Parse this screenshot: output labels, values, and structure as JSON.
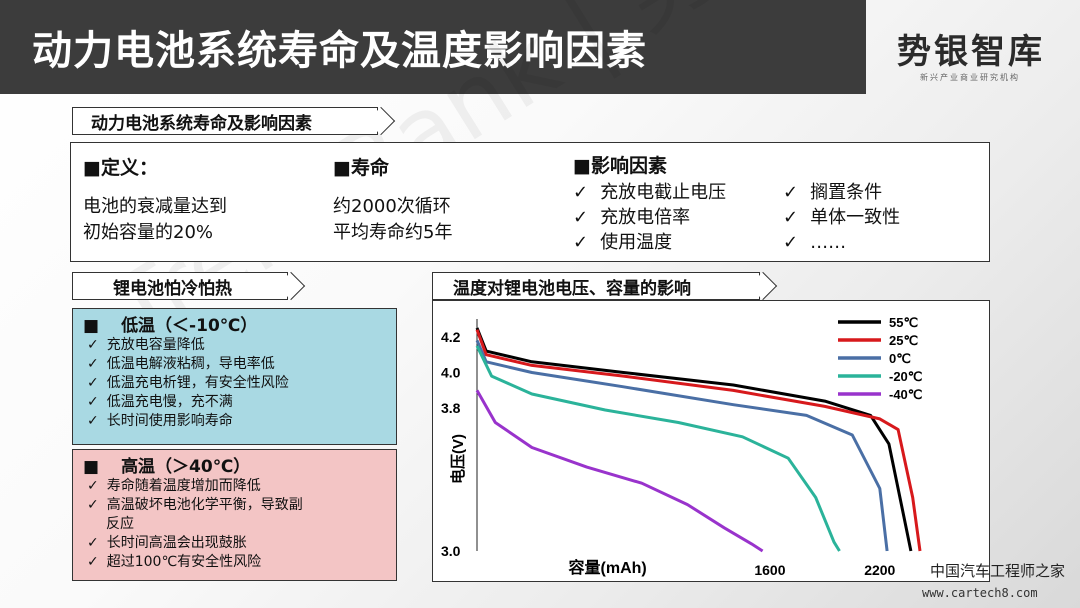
{
  "header": {
    "title": "动力电池系统寿命及温度影响因素"
  },
  "logo": {
    "name": "势银智库",
    "subtitle": "新兴产业商业研究机构"
  },
  "watermark": "TrendBank | 势银智库",
  "sections": {
    "definition_tag": "动力电池系统寿命及影响因素",
    "cold_tag": "锂电池怕冷怕热",
    "chart_tag": "温度对锂电池电压、容量的影响"
  },
  "definition": {
    "heading": "■定义：",
    "lines": [
      "电池的衰减量达到",
      "初始容量的20%"
    ]
  },
  "life": {
    "heading": "■寿命",
    "lines": [
      "约2000次循环",
      "平均寿命约5年"
    ]
  },
  "factors": {
    "heading": "■影响因素",
    "items": [
      "充放电截止电压",
      "搁置条件",
      "充放电倍率",
      "单体一致性",
      "使用温度",
      "……"
    ]
  },
  "cold": {
    "marker": "■",
    "heading": "低温（＜-10℃）",
    "items": [
      "充放电容量降低",
      "低温电解液粘稠，导电率低",
      "低温充电析锂，有安全性风险",
      "低温充电慢，充不满",
      "长时间使用影响寿命"
    ]
  },
  "hot": {
    "marker": "■",
    "heading": "高温（＞40℃）",
    "items": [
      "寿命随着温度增加而降低",
      "高温破坏电池化学平衡，导致副",
      "反应",
      "长时间高温会出现鼓胀",
      "超过100℃有安全性风险"
    ]
  },
  "footer": {
    "mark": "中国汽车工程师之家",
    "url": "www.cartech8.com"
  },
  "chart_data": {
    "type": "line",
    "xlabel": "容量(mAh)",
    "ylabel": "电压(V)",
    "xlim": [
      0,
      2600
    ],
    "ylim": [
      3.0,
      4.3
    ],
    "y_ticks": [
      3.0,
      3.8,
      4.0,
      4.2
    ],
    "x_ticks": [
      1600,
      2200
    ],
    "legend_position": "top-right",
    "series": [
      {
        "name": "55℃",
        "color": "#000000",
        "points": [
          [
            0,
            4.25
          ],
          [
            50,
            4.12
          ],
          [
            300,
            4.06
          ],
          [
            800,
            4.0
          ],
          [
            1400,
            3.93
          ],
          [
            1900,
            3.84
          ],
          [
            2150,
            3.76
          ],
          [
            2250,
            3.6
          ],
          [
            2330,
            3.2
          ],
          [
            2370,
            3.0
          ]
        ]
      },
      {
        "name": "25℃",
        "color": "#d7191c",
        "points": [
          [
            0,
            4.24
          ],
          [
            50,
            4.1
          ],
          [
            300,
            4.04
          ],
          [
            800,
            3.98
          ],
          [
            1400,
            3.9
          ],
          [
            1900,
            3.81
          ],
          [
            2200,
            3.74
          ],
          [
            2300,
            3.68
          ],
          [
            2380,
            3.3
          ],
          [
            2420,
            3.0
          ]
        ]
      },
      {
        "name": "0℃",
        "color": "#4a6fa5",
        "points": [
          [
            0,
            4.18
          ],
          [
            50,
            4.06
          ],
          [
            300,
            4.0
          ],
          [
            800,
            3.92
          ],
          [
            1400,
            3.82
          ],
          [
            1800,
            3.76
          ],
          [
            2050,
            3.65
          ],
          [
            2200,
            3.35
          ],
          [
            2240,
            3.0
          ]
        ]
      },
      {
        "name": "-20℃",
        "color": "#2bb39a",
        "points": [
          [
            0,
            4.15
          ],
          [
            80,
            3.98
          ],
          [
            300,
            3.88
          ],
          [
            700,
            3.79
          ],
          [
            1100,
            3.72
          ],
          [
            1450,
            3.64
          ],
          [
            1700,
            3.52
          ],
          [
            1850,
            3.3
          ],
          [
            1950,
            3.05
          ],
          [
            1980,
            3.0
          ]
        ]
      },
      {
        "name": "-40℃",
        "color": "#9933cc",
        "points": [
          [
            0,
            3.9
          ],
          [
            100,
            3.72
          ],
          [
            300,
            3.58
          ],
          [
            600,
            3.47
          ],
          [
            900,
            3.38
          ],
          [
            1150,
            3.26
          ],
          [
            1350,
            3.13
          ],
          [
            1500,
            3.04
          ],
          [
            1560,
            3.0
          ]
        ]
      }
    ]
  }
}
